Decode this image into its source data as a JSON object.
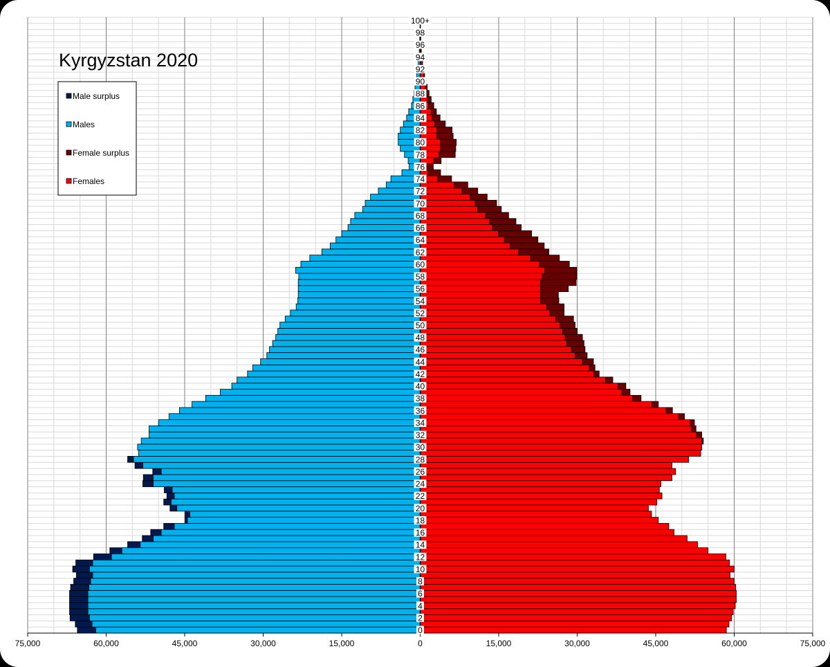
{
  "chart_data": {
    "type": "bar",
    "orientation": "horizontal-population-pyramid",
    "title": "Kyrgyzstan 2020",
    "xlim": [
      -75000,
      75000
    ],
    "x_ticks": [
      -75000,
      -60000,
      -45000,
      -30000,
      -15000,
      0,
      15000,
      30000,
      45000,
      60000,
      75000
    ],
    "x_tick_labels": [
      "75,000",
      "60,000",
      "45,000",
      "30,000",
      "15,000",
      "0",
      "15,000",
      "30,000",
      "45,000",
      "60,000",
      "75,000"
    ],
    "categories": [
      "0",
      "1",
      "2",
      "3",
      "4",
      "5",
      "6",
      "7",
      "8",
      "9",
      "10",
      "11",
      "12",
      "13",
      "14",
      "15",
      "16",
      "17",
      "18",
      "19",
      "20",
      "21",
      "22",
      "23",
      "24",
      "25",
      "26",
      "27",
      "28",
      "29",
      "30",
      "31",
      "32",
      "33",
      "34",
      "35",
      "36",
      "37",
      "38",
      "39",
      "40",
      "41",
      "42",
      "43",
      "44",
      "45",
      "46",
      "47",
      "48",
      "49",
      "50",
      "51",
      "52",
      "53",
      "54",
      "55",
      "56",
      "57",
      "58",
      "59",
      "60",
      "61",
      "62",
      "63",
      "64",
      "65",
      "66",
      "67",
      "68",
      "69",
      "70",
      "71",
      "72",
      "73",
      "74",
      "75",
      "76",
      "77",
      "78",
      "79",
      "80",
      "81",
      "82",
      "83",
      "84",
      "85",
      "86",
      "87",
      "88",
      "89",
      "90",
      "91",
      "92",
      "93",
      "94",
      "95",
      "96",
      "97",
      "98",
      "99",
      "100+"
    ],
    "age_labels": [
      "0",
      "",
      "2",
      "",
      "4",
      "",
      "6",
      "",
      "8",
      "",
      "10",
      "",
      "12",
      "",
      "14",
      "",
      "16",
      "",
      "18",
      "",
      "20",
      "",
      "22",
      "",
      "24",
      "",
      "26",
      "",
      "28",
      "",
      "30",
      "",
      "32",
      "",
      "34",
      "",
      "36",
      "",
      "38",
      "",
      "40",
      "",
      "42",
      "",
      "44",
      "",
      "46",
      "",
      "48",
      "",
      "50",
      "",
      "52",
      "",
      "54",
      "",
      "56",
      "",
      "58",
      "",
      "60",
      "",
      "62",
      "",
      "64",
      "",
      "66",
      "",
      "68",
      "",
      "70",
      "",
      "72",
      "",
      "74",
      "",
      "76",
      "",
      "78",
      "",
      "80",
      "",
      "82",
      "",
      "84",
      "",
      "86",
      "",
      "88",
      "",
      "90",
      "",
      "92",
      "",
      "94",
      "",
      "96",
      "",
      "98",
      "",
      "100+"
    ],
    "series": [
      {
        "name": "Males",
        "values": [
          62000,
          62700,
          63200,
          63500,
          63500,
          63500,
          63500,
          63300,
          63000,
          62600,
          63200,
          62600,
          59000,
          57000,
          53500,
          51000,
          49500,
          47000,
          44500,
          44000,
          46500,
          47600,
          47000,
          47400,
          51000,
          51000,
          49500,
          53000,
          54800,
          53800,
          54000,
          53300,
          51800,
          51800,
          50000,
          48000,
          46000,
          43600,
          41000,
          38200,
          36000,
          35000,
          33000,
          32000,
          30500,
          29300,
          28800,
          28200,
          27600,
          27200,
          26800,
          25800,
          24800,
          23700,
          23400,
          23300,
          23300,
          23300,
          23200,
          23800,
          22800,
          21100,
          18800,
          17200,
          16100,
          15000,
          13800,
          13300,
          12500,
          11000,
          10500,
          9500,
          8000,
          6500,
          5600,
          3500,
          2100,
          2300,
          3000,
          3800,
          4200,
          4200,
          3800,
          3200,
          2600,
          2200,
          1650,
          1400,
          1200,
          1000,
          850,
          650,
          500,
          360,
          250,
          180,
          130,
          90,
          60,
          40,
          70
        ]
      },
      {
        "name": "Male surplus",
        "values": [
          3500,
          3200,
          3700,
          3500,
          3500,
          3500,
          3500,
          3500,
          3200,
          3100,
          3200,
          3200,
          3400,
          2300,
          2400,
          2100,
          2000,
          2000,
          400,
          900,
          1300,
          1400,
          1400,
          1500,
          2000,
          1900,
          1600,
          1500,
          1100,
          0,
          0,
          0,
          0,
          0,
          0,
          0,
          0,
          0,
          0,
          0,
          0,
          0,
          0,
          0,
          0,
          0,
          0,
          0,
          0,
          0,
          0,
          0,
          0,
          0,
          0,
          0,
          0,
          0,
          0,
          0,
          0,
          0,
          0,
          0,
          0,
          0,
          0,
          0,
          0,
          0,
          0,
          0,
          0,
          0,
          0,
          0,
          0,
          0,
          0,
          0,
          0,
          0,
          0,
          0,
          0,
          0,
          0,
          0,
          0,
          0,
          0,
          0,
          0,
          0,
          0,
          0,
          0,
          0,
          0,
          0,
          0
        ]
      },
      {
        "name": "Females",
        "values": [
          58500,
          59000,
          59500,
          59800,
          60200,
          60400,
          60400,
          60300,
          60000,
          59200,
          60000,
          59100,
          58400,
          55000,
          53000,
          51000,
          48500,
          47500,
          45500,
          44200,
          43600,
          45200,
          46200,
          45700,
          46000,
          48100,
          48800,
          48100,
          51300,
          53600,
          53800,
          53800,
          52800,
          51800,
          51600,
          49400,
          47000,
          44300,
          40600,
          38500,
          37800,
          35400,
          33200,
          32300,
          31000,
          29600,
          28900,
          28000,
          27700,
          27200,
          26700,
          25900,
          24800,
          24200,
          23000,
          23000,
          23000,
          23000,
          23300,
          23800,
          22800,
          21100,
          18800,
          17200,
          16100,
          15000,
          13800,
          13300,
          12500,
          11000,
          10500,
          9500,
          8000,
          6500,
          3300,
          1500,
          900,
          2600,
          3600,
          3900,
          3900,
          3200,
          3200,
          2800,
          2300,
          2100,
          1600,
          1400,
          1200,
          1000,
          850,
          650,
          500,
          360,
          250,
          180,
          130,
          90,
          60,
          40,
          70
        ]
      },
      {
        "name": "Female surplus",
        "values": [
          0,
          0,
          0,
          0,
          0,
          0,
          0,
          0,
          0,
          0,
          0,
          0,
          0,
          0,
          0,
          0,
          0,
          0,
          0,
          0,
          0,
          0,
          0,
          0,
          0,
          0,
          0,
          0,
          0,
          0,
          0,
          300,
          1000,
          900,
          800,
          1100,
          1200,
          1200,
          1600,
          1600,
          1500,
          1400,
          1000,
          1100,
          2100,
          2300,
          2600,
          3300,
          3300,
          2800,
          2900,
          3400,
          2700,
          3300,
          3500,
          3400,
          5300,
          6800,
          6600,
          6100,
          5700,
          5500,
          5800,
          6500,
          6400,
          6300,
          5500,
          5000,
          4400,
          4500,
          4100,
          3300,
          3000,
          2600,
          2700,
          2400,
          1600,
          1400,
          3100,
          2900,
          3000,
          3100,
          2900,
          2000,
          1500,
          1000,
          1000,
          700,
          500,
          350,
          300,
          200,
          150,
          100,
          60,
          40,
          30,
          20,
          10,
          10,
          10
        ]
      }
    ],
    "colors": {
      "males": "#00b1ee",
      "male_surplus": "#00194f",
      "females": "#ff0000",
      "female_surplus": "#680000",
      "background": "#ffffff",
      "frame": "#000000",
      "grid_major": "#808080",
      "grid_minor": "#d9d9d9"
    },
    "legend": {
      "placement": "top-left",
      "entries": [
        {
          "name": "Male surplus",
          "color": "#00194f"
        },
        {
          "name": "Males",
          "color": "#00b1ee"
        },
        {
          "name": "Female surplus",
          "color": "#680000"
        },
        {
          "name": "Females",
          "color": "#ff0000"
        }
      ]
    },
    "grid": true
  }
}
